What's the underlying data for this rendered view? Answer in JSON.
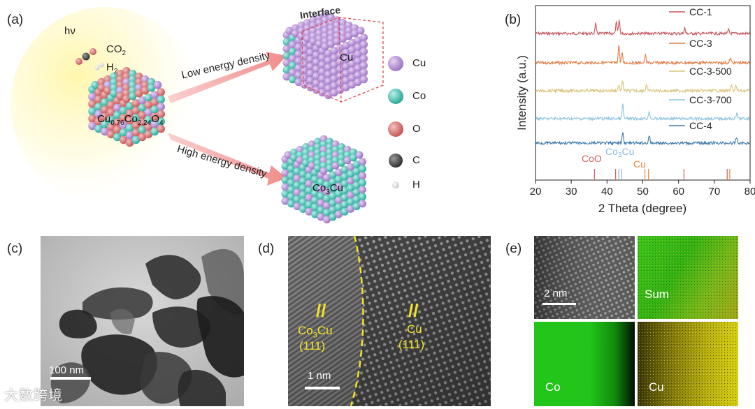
{
  "panel_a": {
    "label": "(a)",
    "light": "hν",
    "co2": "CO",
    "co2_sub": "2",
    "h2": "H",
    "h2_sub": "2",
    "formula": {
      "p1": "Cu",
      "s1": "0.76",
      "p2": "Co",
      "s2": "2.24",
      "p3": "O",
      "s3": "4"
    },
    "interface_label": "Interface",
    "cu_cube_label": "Cu",
    "co3cu_cube": {
      "p1": "Co",
      "s1": "3",
      "p2": "Cu"
    },
    "low_energy": "Low energy density",
    "high_energy": "High energy density",
    "legend": [
      {
        "label": "Cu",
        "color": "#b58ad8"
      },
      {
        "label": "Co",
        "color": "#3fc6b8"
      },
      {
        "label": "O",
        "color": "#d86d6d"
      },
      {
        "label": "C",
        "color": "#4a4a4a"
      },
      {
        "label": "H",
        "color": "#e6e6e6"
      }
    ]
  },
  "panel_b": {
    "label": "(b)",
    "ref_labels": {
      "coo": "CoO",
      "co3cu_1": "Co",
      "co3cu_sub": "3",
      "co3cu_2": "Cu",
      "cu": "Cu"
    }
  },
  "chart_data": {
    "type": "line",
    "xlabel": "2 Theta (degree)",
    "ylabel": "Intensity (a.u.)",
    "xlim": [
      20,
      80
    ],
    "xticks": [
      20,
      30,
      40,
      50,
      60,
      70,
      80
    ],
    "y_ticks_visible": false,
    "series": [
      {
        "name": "CC-1",
        "color": "#c6545a",
        "offset": 4.0,
        "peaks": [
          [
            36.8,
            0.55
          ],
          [
            42.6,
            0.6
          ],
          [
            43.4,
            0.75
          ],
          [
            61.7,
            0.3
          ],
          [
            74.0,
            0.2
          ]
        ]
      },
      {
        "name": "CC-3",
        "color": "#e47c45",
        "offset": 3.0,
        "peaks": [
          [
            43.3,
            1.0
          ],
          [
            44.2,
            0.55
          ],
          [
            50.7,
            0.45
          ],
          [
            74.5,
            0.25
          ]
        ]
      },
      {
        "name": "CC-3-500",
        "color": "#dcc27a",
        "offset": 2.0,
        "peaks": [
          [
            43.3,
            0.35
          ],
          [
            44.4,
            0.55
          ],
          [
            51.0,
            0.35
          ],
          [
            74.8,
            0.3
          ],
          [
            76.0,
            0.28
          ]
        ]
      },
      {
        "name": "CC-3-700",
        "color": "#8fc3e3",
        "offset": 1.0,
        "peaks": [
          [
            44.4,
            0.8
          ],
          [
            51.8,
            0.45
          ],
          [
            76.3,
            0.3
          ]
        ]
      },
      {
        "name": "CC-4",
        "color": "#3d78a8",
        "offset": 0.0,
        "peaks": [
          [
            44.4,
            0.6
          ],
          [
            51.8,
            0.4
          ],
          [
            76.2,
            0.35
          ]
        ]
      }
    ],
    "reference_lines": {
      "CoO": {
        "color": "#d95f5f",
        "positions": [
          36.5,
          42.4,
          61.5,
          73.6
        ]
      },
      "Co3Cu": {
        "color": "#8fb8e0",
        "positions": [
          43.3,
          44.1
        ]
      },
      "Cu": {
        "color": "#e8883a",
        "positions": [
          50.6,
          51.6,
          74.3
        ]
      }
    }
  },
  "panel_c": {
    "label": "(c)",
    "scale": "100 nm"
  },
  "panel_d": {
    "label": "(d)",
    "left_mark": "//",
    "left_phase": {
      "p1": "Co",
      "sub": "3",
      "p2": "Cu"
    },
    "left_plane": "(111)",
    "right_mark": "//",
    "right_phase": "Cu",
    "right_plane": "(111)",
    "scale": "1 nm"
  },
  "panel_e": {
    "label": "(e)",
    "scale": "2 nm",
    "sum_label": "Sum",
    "co_label": "Co",
    "cu_label": "Cu"
  },
  "watermark": "大数跨境"
}
